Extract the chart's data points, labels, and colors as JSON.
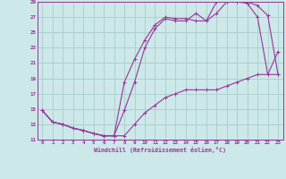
{
  "xlabel": "Windchill (Refroidissement éolien,°C)",
  "bg_color": "#cce8e8",
  "grid_color": "#aacccc",
  "line_color": "#993399",
  "xlim": [
    -0.5,
    23.5
  ],
  "ylim": [
    11,
    29
  ],
  "xticks": [
    0,
    1,
    2,
    3,
    4,
    5,
    6,
    7,
    8,
    9,
    10,
    11,
    12,
    13,
    14,
    15,
    16,
    17,
    18,
    19,
    20,
    21,
    22,
    23
  ],
  "yticks": [
    11,
    13,
    15,
    17,
    19,
    21,
    23,
    25,
    27,
    29
  ],
  "curve1_x": [
    0,
    1,
    2,
    3,
    4,
    5,
    6,
    7,
    8,
    9,
    10,
    11,
    12,
    13,
    14,
    15,
    16,
    17,
    18,
    19,
    20,
    21,
    22,
    23
  ],
  "curve1_y": [
    14.8,
    13.3,
    13.0,
    12.5,
    12.2,
    11.8,
    11.5,
    11.5,
    14.8,
    18.5,
    23.0,
    25.5,
    26.8,
    26.5,
    26.5,
    27.5,
    26.5,
    29.0,
    29.0,
    29.0,
    28.8,
    27.0,
    19.5,
    22.5
  ],
  "curve2_x": [
    0,
    1,
    2,
    3,
    4,
    5,
    6,
    7,
    8,
    9,
    10,
    11,
    12,
    13,
    14,
    15,
    16,
    17,
    18,
    19,
    20,
    21,
    22,
    23
  ],
  "curve2_y": [
    14.8,
    13.3,
    13.0,
    12.5,
    12.2,
    11.8,
    11.5,
    11.5,
    18.5,
    21.5,
    24.0,
    26.0,
    27.0,
    26.8,
    26.8,
    26.5,
    26.5,
    27.5,
    29.0,
    29.0,
    29.0,
    28.5,
    27.2,
    19.5
  ],
  "curve3_x": [
    0,
    1,
    2,
    3,
    4,
    5,
    6,
    7,
    8,
    9,
    10,
    11,
    12,
    13,
    14,
    15,
    16,
    17,
    18,
    19,
    20,
    21,
    22,
    23
  ],
  "curve3_y": [
    14.8,
    13.3,
    13.0,
    12.5,
    12.2,
    11.8,
    11.5,
    11.5,
    11.5,
    13.0,
    14.5,
    15.5,
    16.5,
    17.0,
    17.5,
    17.5,
    17.5,
    17.5,
    18.0,
    18.5,
    19.0,
    19.5,
    19.5,
    19.5
  ]
}
